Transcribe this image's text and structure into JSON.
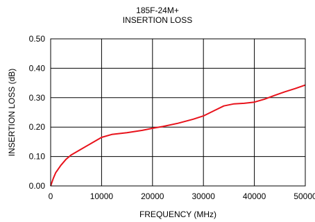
{
  "chart_data": {
    "type": "line",
    "title": "185F-24M+",
    "subtitle": "INSERTION LOSS",
    "xlabel": "FREQUENCY (MHz)",
    "ylabel": "INSERTION LOSS (dB)",
    "xlim": [
      0,
      50000
    ],
    "ylim": [
      0,
      0.5
    ],
    "x_ticks": [
      "0",
      "10000",
      "20000",
      "30000",
      "40000",
      "50000"
    ],
    "y_ticks": [
      "0.00",
      "0.10",
      "0.20",
      "0.30",
      "0.40",
      "0.50"
    ],
    "grid": true,
    "line_color": "#e8121b",
    "series": [
      {
        "x": [
          0,
          500,
          1000,
          2000,
          3000,
          4000,
          6000,
          8000,
          10000,
          12000,
          15000,
          18000,
          20000,
          22000,
          25000,
          28000,
          30000,
          32000,
          34000,
          36000,
          38000,
          40000,
          42000,
          44000,
          46000,
          48000,
          50000
        ],
        "y": [
          0.0,
          0.025,
          0.045,
          0.07,
          0.09,
          0.105,
          0.125,
          0.145,
          0.165,
          0.175,
          0.181,
          0.189,
          0.196,
          0.202,
          0.213,
          0.227,
          0.238,
          0.255,
          0.272,
          0.279,
          0.281,
          0.285,
          0.295,
          0.308,
          0.32,
          0.331,
          0.343
        ]
      }
    ]
  }
}
